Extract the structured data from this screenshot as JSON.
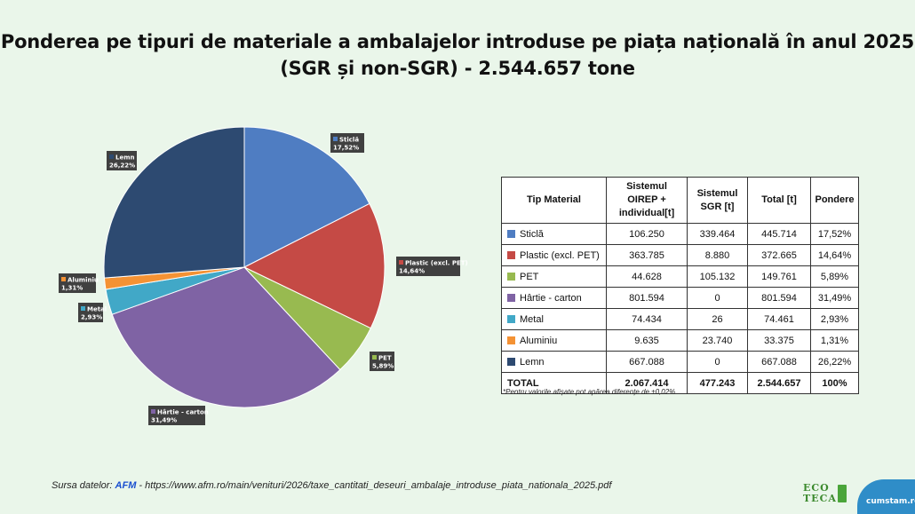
{
  "chart_data": {
    "type": "pie",
    "title_line1": "Ponderea pe tipuri de materiale a ambalajelor introduse pe piața națională în anul 2025",
    "title_line2": "(SGR și non-SGR) - 2.544.657 tone",
    "slices": [
      {
        "name": "Sticlă",
        "value": 17.52,
        "percent_label": "17,52%",
        "color": "#4f7dc2"
      },
      {
        "name": "Plastic (excl. PET)",
        "value": 14.64,
        "percent_label": "14,64%",
        "color": "#c54a45"
      },
      {
        "name": "PET",
        "value": 5.89,
        "percent_label": "5,89%",
        "color": "#98ba50"
      },
      {
        "name": "Hârtie - carton",
        "value": 31.49,
        "percent_label": "31,49%",
        "color": "#7f63a4"
      },
      {
        "name": "Metal",
        "value": 2.93,
        "percent_label": "2,93%",
        "color": "#41a8c7"
      },
      {
        "name": "Aluminiu",
        "value": 1.31,
        "percent_label": "1,31%",
        "color": "#f49234"
      },
      {
        "name": "Lemn",
        "value": 26.22,
        "percent_label": "26,22%",
        "color": "#2d4a71"
      }
    ]
  },
  "table": {
    "headers": [
      "Tip Material",
      "Sistemul OIREP + individual[t]",
      "Sistemul SGR [t]",
      "Total [t]",
      "Pondere"
    ],
    "rows": [
      {
        "material": "Sticlă",
        "oirep": "106.250",
        "sgr": "339.464",
        "total": "445.714",
        "pondere": "17,52%",
        "color": "#4f7dc2"
      },
      {
        "material": "Plastic (excl. PET)",
        "oirep": "363.785",
        "sgr": "8.880",
        "total": "372.665",
        "pondere": "14,64%",
        "color": "#c54a45"
      },
      {
        "material": "PET",
        "oirep": "44.628",
        "sgr": "105.132",
        "total": "149.761",
        "pondere": "5,89%",
        "color": "#98ba50"
      },
      {
        "material": "Hârtie - carton",
        "oirep": "801.594",
        "sgr": "0",
        "total": "801.594",
        "pondere": "31,49%",
        "color": "#7f63a4"
      },
      {
        "material": "Metal",
        "oirep": "74.434",
        "sgr": "26",
        "total": "74.461",
        "pondere": "2,93%",
        "color": "#41a8c7"
      },
      {
        "material": "Aluminiu",
        "oirep": "9.635",
        "sgr": "23.740",
        "total": "33.375",
        "pondere": "1,31%",
        "color": "#f49234"
      },
      {
        "material": "Lemn",
        "oirep": "667.088",
        "sgr": "0",
        "total": "667.088",
        "pondere": "26,22%",
        "color": "#2d4a71"
      }
    ],
    "total_row": {
      "material": "TOTAL",
      "oirep": "2.067.414",
      "sgr": "477.243",
      "total": "2.544.657",
      "pondere": "100%"
    }
  },
  "note": "*Pentru valorile afișate pot apărea diferențe de ±0,02%",
  "source": {
    "prefix": "Sursa datelor: ",
    "org": "AFM",
    "rest": " - https://www.afm.ro/main/venituri/2026/taxe_cantitati_deseuri_ambalaje_introduse_piata_nationala_2025.pdf"
  },
  "logos": {
    "ecoteca": "ECO TECA",
    "cumstam": "cumstam.ro"
  }
}
